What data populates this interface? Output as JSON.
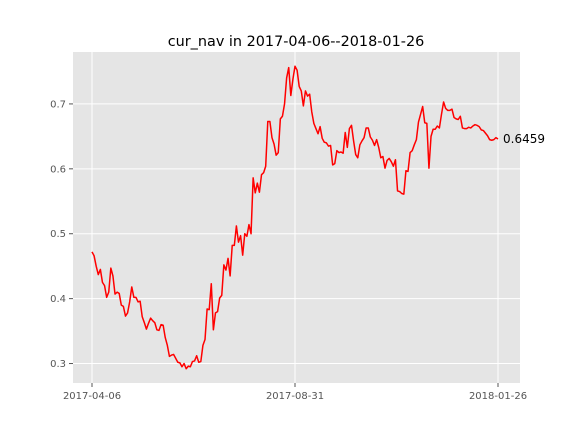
{
  "chart_data": {
    "type": "line",
    "title": "cur_nav in 2017-04-06--2018-01-26",
    "xlabel": "",
    "ylabel": "",
    "x_tick_labels": [
      "2017-04-06",
      "2017-08-31",
      "2018-01-26"
    ],
    "y_ticks": [
      0.3,
      0.4,
      0.5,
      0.6,
      0.7
    ],
    "y_tick_labels": [
      "0.3",
      "0.4",
      "0.5",
      "0.6",
      "0.7"
    ],
    "ylim": [
      0.27,
      0.78
    ],
    "grid": true,
    "background": "#e5e5e5",
    "line_color": "#ff0000",
    "end_label": "0.6459",
    "series": [
      {
        "values": [
          0.472,
          0.466,
          0.45,
          0.437,
          0.445,
          0.425,
          0.42,
          0.402,
          0.41,
          0.447,
          0.435,
          0.407,
          0.41,
          0.408,
          0.39,
          0.388,
          0.373,
          0.378,
          0.395,
          0.418,
          0.402,
          0.402,
          0.395,
          0.396,
          0.372,
          0.363,
          0.353,
          0.362,
          0.37,
          0.366,
          0.363,
          0.352,
          0.351,
          0.36,
          0.359,
          0.34,
          0.328,
          0.311,
          0.313,
          0.314,
          0.308,
          0.302,
          0.301,
          0.295,
          0.3,
          0.292,
          0.296,
          0.295,
          0.303,
          0.304,
          0.312,
          0.302,
          0.303,
          0.328,
          0.337,
          0.384,
          0.383,
          0.423,
          0.352,
          0.378,
          0.38,
          0.401,
          0.405,
          0.452,
          0.444,
          0.462,
          0.435,
          0.482,
          0.482,
          0.512,
          0.487,
          0.497,
          0.467,
          0.5,
          0.496,
          0.514,
          0.5,
          0.586,
          0.563,
          0.578,
          0.564,
          0.591,
          0.594,
          0.604,
          0.673,
          0.673,
          0.648,
          0.638,
          0.621,
          0.625,
          0.677,
          0.681,
          0.7,
          0.74,
          0.756,
          0.713,
          0.738,
          0.758,
          0.752,
          0.727,
          0.72,
          0.697,
          0.72,
          0.712,
          0.715,
          0.688,
          0.67,
          0.662,
          0.654,
          0.665,
          0.647,
          0.641,
          0.64,
          0.635,
          0.636,
          0.606,
          0.608,
          0.628,
          0.625,
          0.626,
          0.624,
          0.656,
          0.633,
          0.662,
          0.667,
          0.643,
          0.622,
          0.617,
          0.637,
          0.643,
          0.648,
          0.663,
          0.663,
          0.649,
          0.644,
          0.636,
          0.645,
          0.633,
          0.617,
          0.619,
          0.601,
          0.613,
          0.616,
          0.611,
          0.604,
          0.614,
          0.566,
          0.565,
          0.562,
          0.561,
          0.597,
          0.596,
          0.625,
          0.628,
          0.637,
          0.645,
          0.672,
          0.684,
          0.696,
          0.671,
          0.67,
          0.601,
          0.65,
          0.661,
          0.661,
          0.666,
          0.663,
          0.684,
          0.703,
          0.693,
          0.69,
          0.69,
          0.692,
          0.679,
          0.677,
          0.676,
          0.681,
          0.663,
          0.662,
          0.662,
          0.664,
          0.663,
          0.666,
          0.668,
          0.667,
          0.665,
          0.66,
          0.659,
          0.655,
          0.651,
          0.645,
          0.644,
          0.645,
          0.648,
          0.6459
        ]
      }
    ]
  }
}
